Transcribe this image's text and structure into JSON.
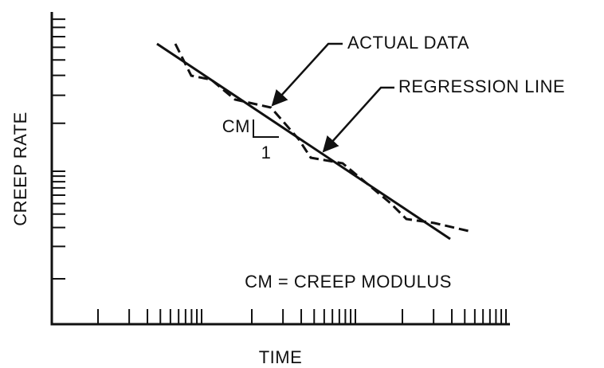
{
  "labels": {
    "actual_data": "ACTUAL DATA",
    "regression_line": "REGRESSION LINE",
    "cm": "CM",
    "one": "1",
    "definition": "CM = CREEP MODULUS",
    "y_axis": "CREEP RATE",
    "x_axis": "TIME"
  }
}
